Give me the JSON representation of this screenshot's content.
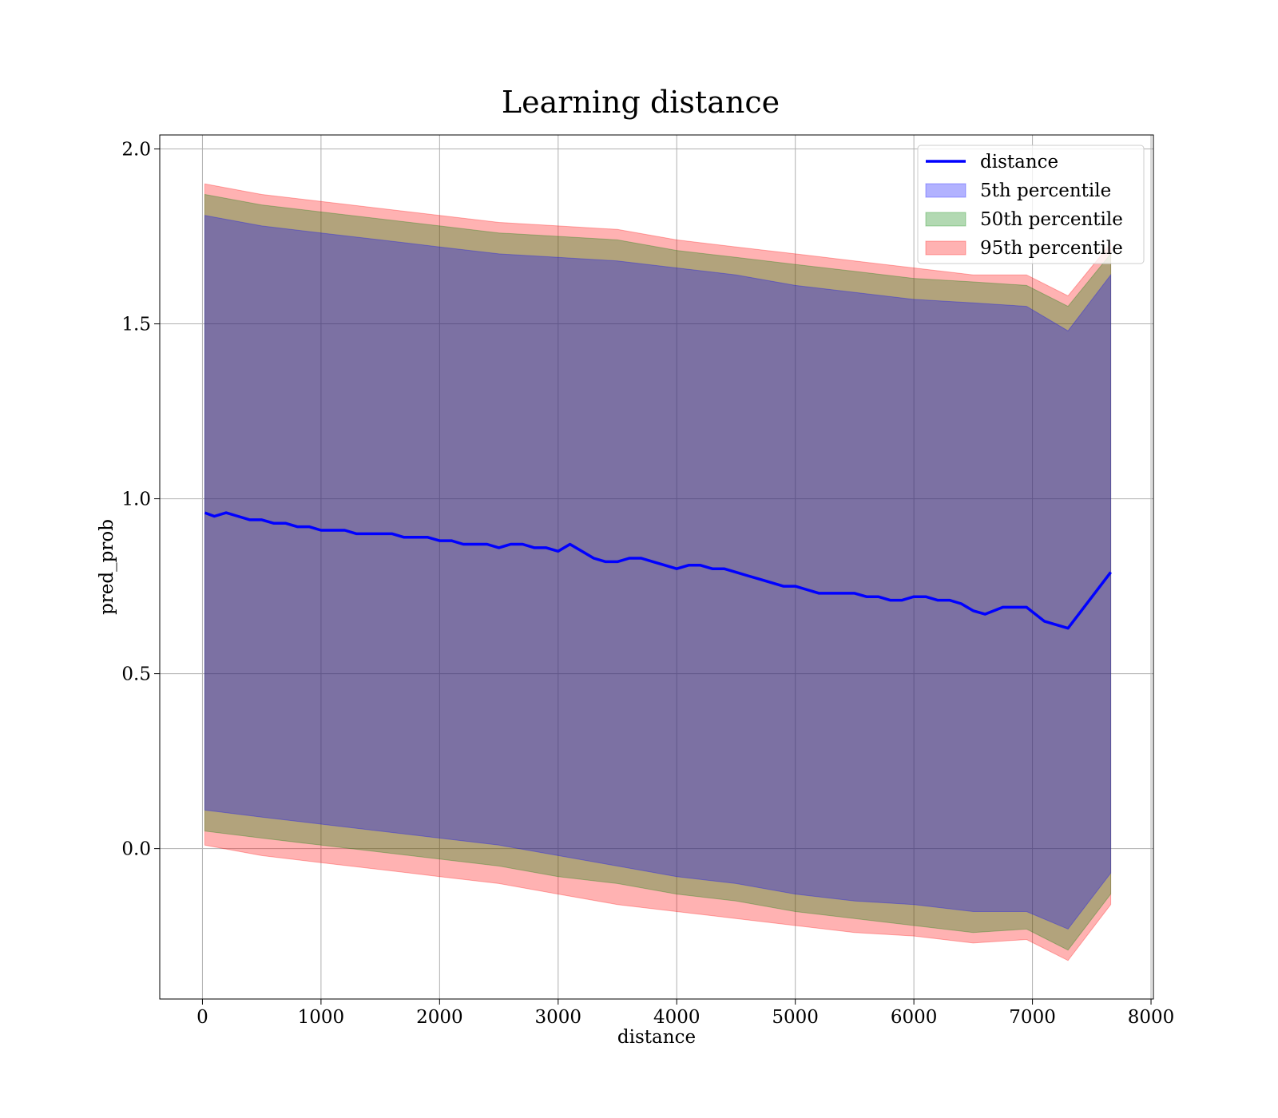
{
  "chart_data": {
    "type": "line",
    "title": "Learning distance",
    "xlabel": "distance",
    "ylabel": "pred_prob",
    "xlim": [
      -360,
      8020
    ],
    "ylim": [
      -0.43,
      2.04
    ],
    "xticks": [
      0,
      1000,
      2000,
      3000,
      4000,
      5000,
      6000,
      7000,
      8000
    ],
    "yticks": [
      0.0,
      0.5,
      1.0,
      1.5,
      2.0
    ],
    "xtick_labels": [
      "0",
      "1000",
      "2000",
      "3000",
      "4000",
      "5000",
      "6000",
      "7000",
      "8000"
    ],
    "ytick_labels": [
      "0.0",
      "0.5",
      "1.0",
      "1.5",
      "2.0"
    ],
    "grid": true,
    "legend_position": "top-right",
    "colors": {
      "line": "#0000ff",
      "p5": "#0000ff",
      "p50": "#008000",
      "p95": "#ff0000"
    },
    "series": [
      {
        "name": "distance",
        "kind": "line",
        "x": [
          20,
          100,
          200,
          300,
          400,
          500,
          600,
          700,
          800,
          900,
          1000,
          1100,
          1200,
          1300,
          1400,
          1500,
          1600,
          1700,
          1800,
          1900,
          2000,
          2100,
          2200,
          2300,
          2400,
          2500,
          2600,
          2700,
          2800,
          2900,
          3000,
          3100,
          3200,
          3300,
          3400,
          3500,
          3600,
          3700,
          3800,
          3900,
          4000,
          4100,
          4200,
          4300,
          4400,
          4500,
          4600,
          4700,
          4800,
          4900,
          5000,
          5100,
          5200,
          5300,
          5400,
          5500,
          5600,
          5700,
          5800,
          5900,
          6000,
          6100,
          6200,
          6300,
          6400,
          6500,
          6600,
          6750,
          6950,
          7100,
          7300,
          7660
        ],
        "y": [
          0.96,
          0.95,
          0.96,
          0.95,
          0.94,
          0.94,
          0.93,
          0.93,
          0.92,
          0.92,
          0.91,
          0.91,
          0.91,
          0.9,
          0.9,
          0.9,
          0.9,
          0.89,
          0.89,
          0.89,
          0.88,
          0.88,
          0.87,
          0.87,
          0.87,
          0.86,
          0.87,
          0.87,
          0.86,
          0.86,
          0.85,
          0.87,
          0.85,
          0.83,
          0.82,
          0.82,
          0.83,
          0.83,
          0.82,
          0.81,
          0.8,
          0.81,
          0.81,
          0.8,
          0.8,
          0.79,
          0.78,
          0.77,
          0.76,
          0.75,
          0.75,
          0.74,
          0.73,
          0.73,
          0.73,
          0.73,
          0.72,
          0.72,
          0.71,
          0.71,
          0.72,
          0.72,
          0.71,
          0.71,
          0.7,
          0.68,
          0.67,
          0.69,
          0.69,
          0.65,
          0.63,
          0.79
        ]
      },
      {
        "name": "5th percentile",
        "kind": "band",
        "x": [
          20,
          500,
          1000,
          1500,
          2000,
          2500,
          3000,
          3500,
          4000,
          4500,
          5000,
          5500,
          6000,
          6500,
          6950,
          7300,
          7660
        ],
        "lower": [
          0.11,
          0.09,
          0.07,
          0.05,
          0.03,
          0.01,
          -0.02,
          -0.05,
          -0.08,
          -0.1,
          -0.13,
          -0.15,
          -0.16,
          -0.18,
          -0.18,
          -0.23,
          -0.07
        ],
        "upper": [
          1.81,
          1.78,
          1.76,
          1.74,
          1.72,
          1.7,
          1.69,
          1.68,
          1.66,
          1.64,
          1.61,
          1.59,
          1.57,
          1.56,
          1.55,
          1.48,
          1.64
        ]
      },
      {
        "name": "50th percentile",
        "kind": "band",
        "x": [
          20,
          500,
          1000,
          1500,
          2000,
          2500,
          3000,
          3500,
          4000,
          4500,
          5000,
          5500,
          6000,
          6500,
          6950,
          7300,
          7660
        ],
        "lower": [
          0.05,
          0.03,
          0.01,
          -0.01,
          -0.03,
          -0.05,
          -0.08,
          -0.1,
          -0.13,
          -0.15,
          -0.18,
          -0.2,
          -0.22,
          -0.24,
          -0.23,
          -0.29,
          -0.13
        ],
        "upper": [
          1.87,
          1.84,
          1.82,
          1.8,
          1.78,
          1.76,
          1.75,
          1.74,
          1.71,
          1.69,
          1.67,
          1.65,
          1.63,
          1.62,
          1.61,
          1.55,
          1.7
        ]
      },
      {
        "name": "95th percentile",
        "kind": "band",
        "x": [
          20,
          500,
          1000,
          1500,
          2000,
          2500,
          3000,
          3500,
          4000,
          4500,
          5000,
          5500,
          6000,
          6500,
          6950,
          7300,
          7660
        ],
        "lower": [
          0.01,
          -0.02,
          -0.04,
          -0.06,
          -0.08,
          -0.1,
          -0.13,
          -0.16,
          -0.18,
          -0.2,
          -0.22,
          -0.24,
          -0.25,
          -0.27,
          -0.26,
          -0.32,
          -0.16
        ],
        "upper": [
          1.9,
          1.87,
          1.85,
          1.83,
          1.81,
          1.79,
          1.78,
          1.77,
          1.74,
          1.72,
          1.7,
          1.68,
          1.66,
          1.64,
          1.64,
          1.58,
          1.73
        ]
      }
    ]
  }
}
